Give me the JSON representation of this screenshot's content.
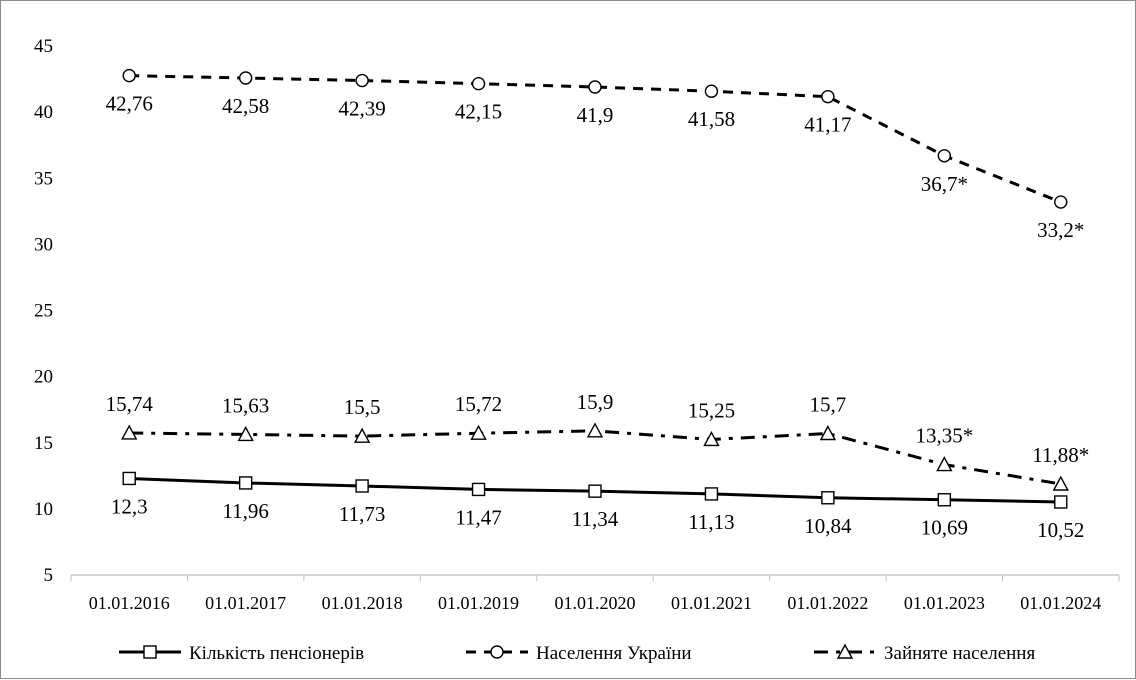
{
  "chart_data": {
    "type": "line",
    "title": "",
    "xlabel": "",
    "ylabel": "",
    "ylim": [
      5,
      45
    ],
    "yticks": [
      5,
      10,
      15,
      20,
      25,
      30,
      35,
      40,
      45
    ],
    "grid": false,
    "legend": "bottom",
    "categories": [
      "01.01.2016",
      "01.01.2017",
      "01.01.2018",
      "01.01.2019",
      "01.01.2020",
      "01.01.2021",
      "01.01.2022",
      "01.01.2023",
      "01.01.2024"
    ],
    "series": [
      {
        "name": "Кількість пенсіонерів",
        "values": [
          12.3,
          11.96,
          11.73,
          11.47,
          11.34,
          11.13,
          10.84,
          10.69,
          10.52
        ],
        "labels": [
          "12,3",
          "11,96",
          "11,73",
          "11,47",
          "11,34",
          "11,13",
          "10,84",
          "10,69",
          "10,52"
        ],
        "marker": "square",
        "line_style": "solid",
        "label_position": "below",
        "color": "#000000"
      },
      {
        "name": "Населення України",
        "values": [
          42.76,
          42.58,
          42.39,
          42.15,
          41.9,
          41.58,
          41.17,
          36.7,
          33.2
        ],
        "labels": [
          "42,76",
          "42,58",
          "42,39",
          "42,15",
          "41,9",
          "41,58",
          "41,17",
          "36,7*",
          "33,2*"
        ],
        "marker": "circle",
        "line_style": "dashed",
        "label_position": "below",
        "color": "#000000"
      },
      {
        "name": "Зайняте населення",
        "values": [
          15.74,
          15.63,
          15.5,
          15.72,
          15.9,
          15.25,
          15.7,
          13.35,
          11.88
        ],
        "labels": [
          "15,74",
          "15,63",
          "15,5",
          "15,72",
          "15,9",
          "15,25",
          "15,7",
          "13,35*",
          "11,88*"
        ],
        "marker": "triangle",
        "line_style": "dash-dot",
        "label_position": "above",
        "color": "#000000"
      }
    ]
  }
}
